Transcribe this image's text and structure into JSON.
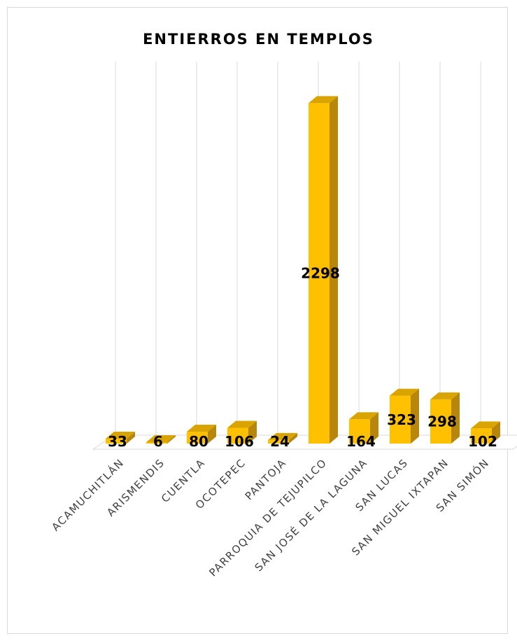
{
  "chart_data": {
    "type": "bar",
    "title": "ENTIERROS EN TEMPLOS",
    "categories": [
      "ACAMUCHITLÁN",
      "ARISMENDIS",
      "CUENTLA",
      "OCOTEPEC",
      "PANTOJA",
      "PARROQUIA DE TEJUPILCO",
      "SAN JOSÉ DE LA LAGUNA",
      "SAN LUCAS",
      "SAN MIGUEL IXTAPAN",
      "SAN SIMÓN"
    ],
    "values": [
      33,
      6,
      80,
      106,
      24,
      2298,
      164,
      323,
      298,
      102
    ],
    "data_labels": [
      "33",
      "6",
      "80",
      "106",
      "24",
      "2298",
      "164",
      "323",
      "298",
      "102"
    ],
    "ylim": [
      0,
      2300
    ],
    "grid": true,
    "legend": "none",
    "style": "3d-column",
    "colors": {
      "front": "#ffc000",
      "side": "#b8860b",
      "top": "#d9a300",
      "grid": "#d9d9d9",
      "floor": "#d9d9d9"
    }
  }
}
